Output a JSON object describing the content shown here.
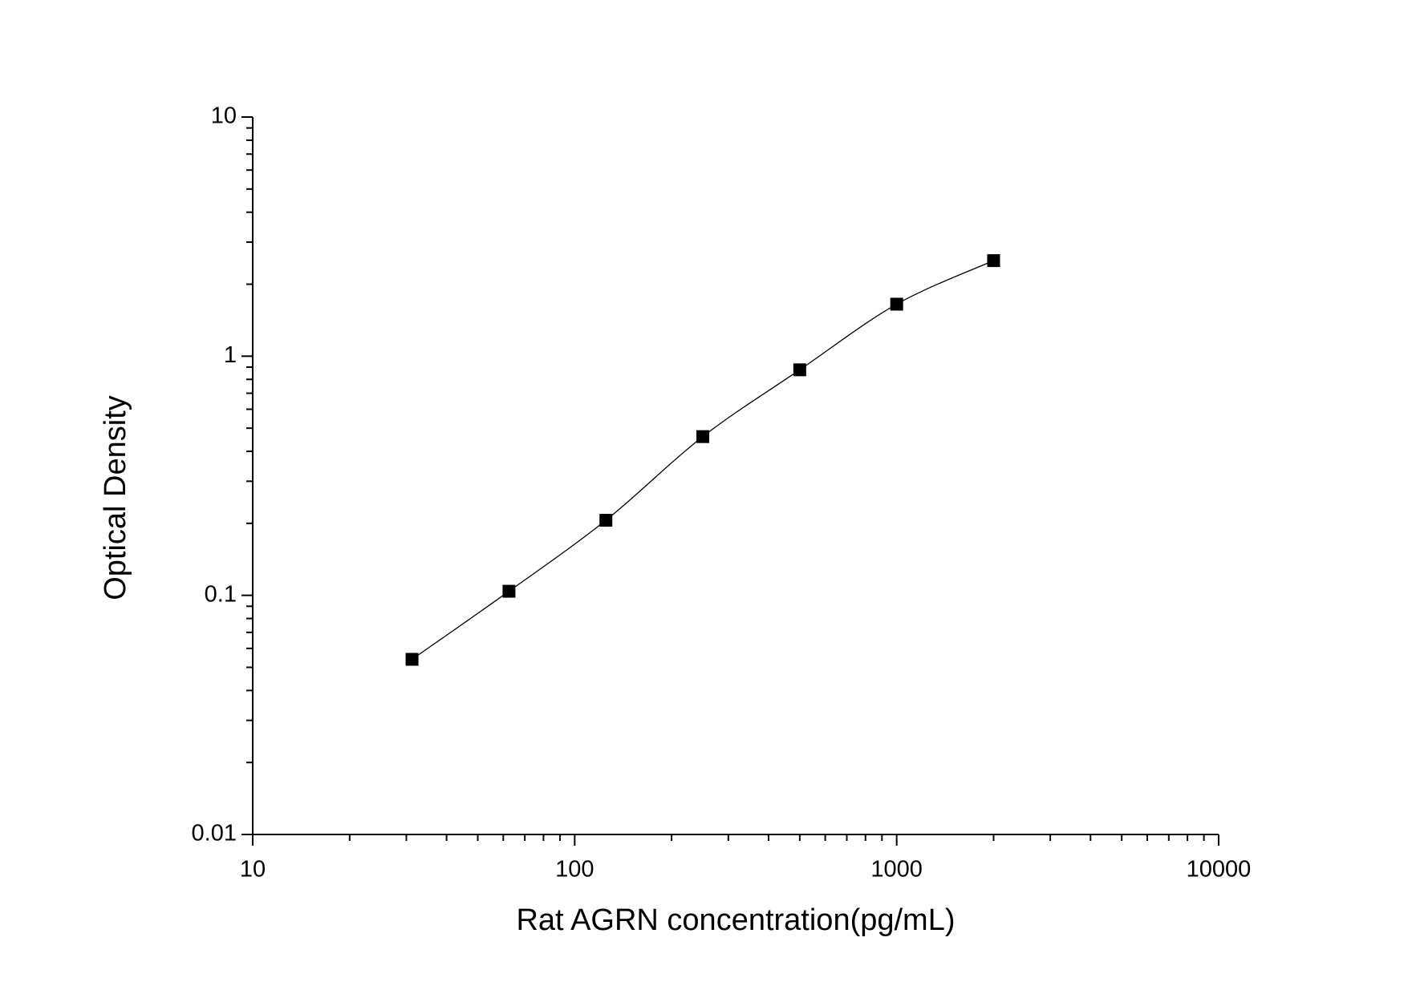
{
  "chart_data": {
    "type": "scatter",
    "x_label": "Rat AGRN concentration(pg/mL)",
    "y_label": "Optical Density",
    "x": [
      31.25,
      62.5,
      125,
      250,
      500,
      1000,
      2000
    ],
    "series": [
      {
        "color": "#000000",
        "values": [
          0.054,
          0.104,
          0.206,
          0.461,
          0.877,
          1.65,
          2.51
        ]
      }
    ],
    "xlim": [
      10,
      10000
    ],
    "xticks": [
      10,
      100,
      1000,
      10000
    ],
    "ylim": [
      0.01,
      10
    ],
    "yticks": [
      0.01,
      0.1,
      1,
      10
    ],
    "xscale": "log",
    "yscale": "log",
    "grid": false,
    "fit_line": true
  }
}
